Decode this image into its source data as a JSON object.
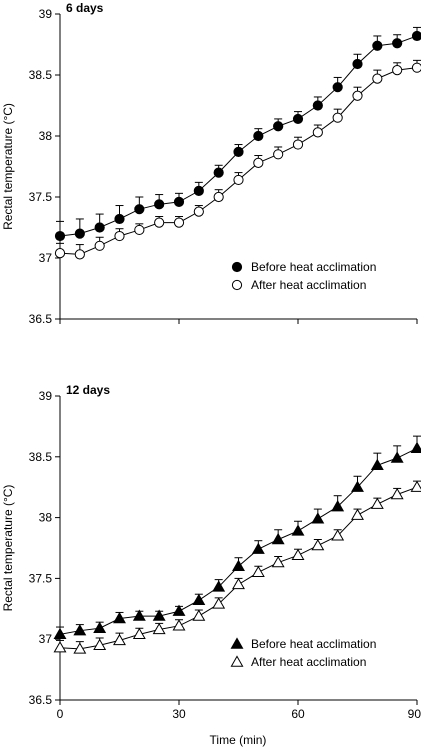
{
  "chart_data": [
    {
      "type": "line",
      "title": "6 days",
      "xlabel": "",
      "ylabel": "Rectal temperature (°C)",
      "xlim": [
        0,
        90
      ],
      "ylim": [
        36.5,
        39
      ],
      "yticks": [
        36.5,
        37,
        37.5,
        38,
        38.5,
        39
      ],
      "xticks": [
        0,
        30,
        60,
        90
      ],
      "xtick_labels_shown": false,
      "grid": false,
      "legend": "lower-right",
      "x": [
        0,
        5,
        10,
        15,
        20,
        25,
        30,
        35,
        40,
        45,
        50,
        55,
        60,
        65,
        70,
        75,
        80,
        85,
        90
      ],
      "series": [
        {
          "name": "Before heat acclimation",
          "marker": "filled-circle",
          "values": [
            37.18,
            37.2,
            37.25,
            37.32,
            37.4,
            37.44,
            37.46,
            37.55,
            37.7,
            37.87,
            38.0,
            38.08,
            38.14,
            38.25,
            38.4,
            38.59,
            38.74,
            38.76,
            38.82
          ],
          "error": [
            0.12,
            0.12,
            0.11,
            0.11,
            0.1,
            0.08,
            0.07,
            0.07,
            0.06,
            0.06,
            0.06,
            0.06,
            0.06,
            0.07,
            0.08,
            0.08,
            0.08,
            0.07,
            0.07
          ]
        },
        {
          "name": "After heat acclimation",
          "marker": "open-circle",
          "values": [
            37.04,
            37.03,
            37.1,
            37.18,
            37.23,
            37.29,
            37.29,
            37.38,
            37.5,
            37.64,
            37.78,
            37.85,
            37.93,
            38.03,
            38.15,
            38.33,
            38.47,
            38.54,
            38.56
          ],
          "error": [
            0.08,
            0.08,
            0.07,
            0.06,
            0.05,
            0.05,
            0.05,
            0.05,
            0.06,
            0.06,
            0.06,
            0.06,
            0.06,
            0.06,
            0.07,
            0.07,
            0.07,
            0.06,
            0.06
          ]
        }
      ]
    },
    {
      "type": "line",
      "title": "12 days",
      "xlabel": "Time (min)",
      "ylabel": "Rectal temperature (°C)",
      "xlim": [
        0,
        90
      ],
      "ylim": [
        36.5,
        39
      ],
      "yticks": [
        36.5,
        37,
        37.5,
        38,
        38.5,
        39
      ],
      "xticks": [
        0,
        30,
        60,
        90
      ],
      "xtick_labels_shown": true,
      "grid": false,
      "legend": "lower-right",
      "x": [
        0,
        5,
        10,
        15,
        20,
        25,
        30,
        35,
        40,
        45,
        50,
        55,
        60,
        65,
        70,
        75,
        80,
        85,
        90
      ],
      "series": [
        {
          "name": "Before heat acclimation",
          "marker": "filled-triangle",
          "values": [
            37.04,
            37.07,
            37.09,
            37.17,
            37.19,
            37.19,
            37.23,
            37.32,
            37.43,
            37.6,
            37.74,
            37.82,
            37.89,
            37.99,
            38.09,
            38.25,
            38.43,
            38.49,
            38.57
          ],
          "error": [
            0.06,
            0.05,
            0.05,
            0.05,
            0.04,
            0.04,
            0.04,
            0.05,
            0.06,
            0.07,
            0.07,
            0.08,
            0.08,
            0.08,
            0.09,
            0.09,
            0.1,
            0.1,
            0.1
          ]
        },
        {
          "name": "After heat acclimation",
          "marker": "open-triangle",
          "values": [
            36.93,
            36.92,
            36.95,
            36.99,
            37.04,
            37.08,
            37.11,
            37.19,
            37.29,
            37.45,
            37.55,
            37.63,
            37.69,
            37.77,
            37.85,
            38.02,
            38.11,
            38.19,
            38.25
          ],
          "error": [
            0.06,
            0.06,
            0.06,
            0.06,
            0.05,
            0.05,
            0.05,
            0.05,
            0.05,
            0.05,
            0.05,
            0.05,
            0.05,
            0.05,
            0.05,
            0.05,
            0.05,
            0.05,
            0.05
          ]
        }
      ]
    }
  ]
}
